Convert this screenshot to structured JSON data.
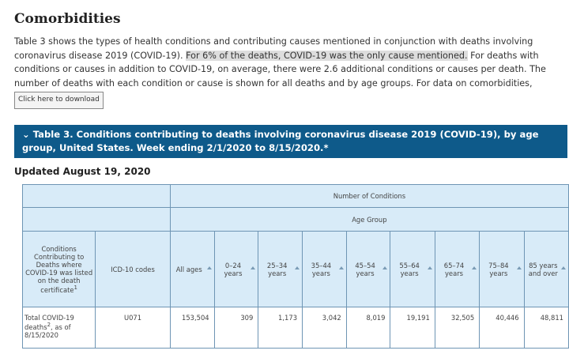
{
  "header": {
    "title": "Comorbidities"
  },
  "intro": {
    "text_before": "Table 3 shows the types of health conditions and contributing causes mentioned in conjunction with deaths involving coronavirus disease 2019 (COVID-19).",
    "highlight": "For 6% of the deaths, COVID-19 was the only cause mentioned.",
    "text_after": "For deaths with conditions or causes in addition to COVID-19, on average, there were 2.6 additional conditions or causes per death. The number of deaths with each condition or cause is shown for all deaths and by age groups. For data on comorbidities,"
  },
  "button": {
    "label": "Click here to download"
  },
  "table_title": "Table 3. Conditions contributing to deaths involving coronavirus disease 2019 (COVID-19), by age group, United States. Week ending 2/1/2020 to 8/15/2020.*",
  "updated": "Updated August 19, 2020",
  "table": {
    "group_header": "Number of Conditions",
    "subgroup_header": "Age Group",
    "condition_header": {
      "text": "Conditions Contributing to Deaths where COVID-19 was listed on the death certificate",
      "sup": "1"
    },
    "code_header": "ICD-10 codes",
    "age_columns": [
      "All ages",
      "0–24 years",
      "25–34 years",
      "35–44 years",
      "45–54 years",
      "55–64 years",
      "65–74 years",
      "75–84 years",
      "85 years and over"
    ],
    "rows": [
      {
        "label": "Total COVID-19 deaths",
        "sup": "2",
        "label_after": ", as of 8/15/2020",
        "code": "U071",
        "values": [
          "153,504",
          "309",
          "1,173",
          "3,042",
          "8,019",
          "19,191",
          "32,505",
          "40,446",
          "48,811"
        ]
      }
    ]
  }
}
